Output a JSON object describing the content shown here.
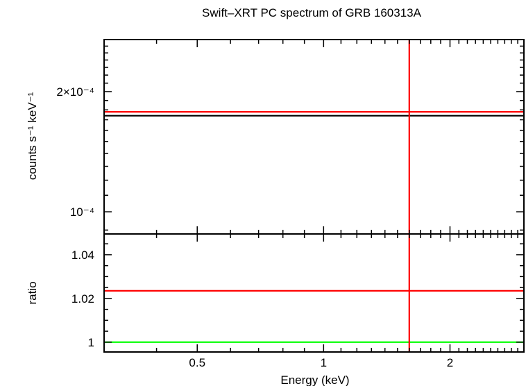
{
  "chart_data": {
    "title": "Swift–XRT PC spectrum of GRB 160313A",
    "type": "line",
    "xlabel": "Energy (keV)",
    "x_scale": "log",
    "xlim": [
      0.3,
      3.0
    ],
    "x_ticks": [
      {
        "value": 0.5,
        "label": "0.5"
      },
      {
        "value": 1,
        "label": "1"
      },
      {
        "value": 2,
        "label": "2"
      }
    ],
    "panels": [
      {
        "name": "spectrum",
        "ylabel": "counts s⁻¹ keV⁻¹",
        "y_scale": "log",
        "ylim": [
          8.8e-05,
          0.00027
        ],
        "y_ticks": [
          {
            "value": 0.0001,
            "label": "10⁻⁴"
          },
          {
            "value": 0.0002,
            "label": "2×10⁻⁴"
          }
        ],
        "series": [
          {
            "color": "#000000",
            "x": [
              0.3,
              3.0
            ],
            "y": [
              0.000174,
              0.000174
            ]
          },
          {
            "color": "#ff0000",
            "x": [
              0.3,
              3.0
            ],
            "y": [
              0.000178,
              0.000178
            ]
          },
          {
            "color": "#ff0000",
            "x": [
              1.6,
              1.6
            ],
            "y": [
              8.8e-05,
              0.00027
            ]
          }
        ]
      },
      {
        "name": "ratio",
        "ylabel": "ratio",
        "y_scale": "linear",
        "ylim": [
          0.9955,
          1.0495
        ],
        "y_ticks": [
          {
            "value": 1,
            "label": "1"
          },
          {
            "value": 1.02,
            "label": "1.02"
          },
          {
            "value": 1.04,
            "label": "1.04"
          }
        ],
        "series": [
          {
            "color": "#00ff00",
            "x": [
              0.3,
              3.0
            ],
            "y": [
              1,
              1
            ]
          },
          {
            "color": "#ff0000",
            "x": [
              0.3,
              3.0
            ],
            "y": [
              1.0235,
              1.0235
            ]
          },
          {
            "color": "#ff0000",
            "x": [
              1.6,
              1.6
            ],
            "y": [
              0.9955,
              1.0495
            ]
          }
        ]
      }
    ]
  }
}
